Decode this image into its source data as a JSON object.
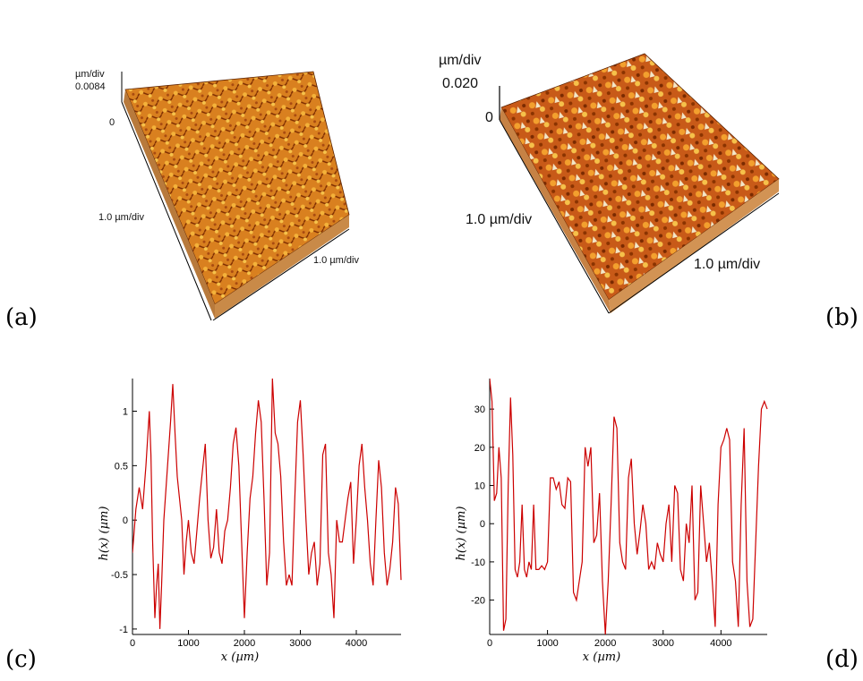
{
  "panels": {
    "a": {
      "label": "(a)",
      "z_unit": "µm/div",
      "z_value": "0.0084",
      "z_zero": "0",
      "x_scale": "1.0 µm/div",
      "y_scale": "1.0 µm/div"
    },
    "b": {
      "label": "(b)",
      "z_unit": "µm/div",
      "z_value": "0.020",
      "z_zero": "0",
      "x_scale": "1.0 µm/div",
      "y_scale": "1.0 µm/div"
    },
    "c": {
      "label": "(c)"
    },
    "d": {
      "label": "(d)"
    }
  },
  "colors": {
    "line": "#cc0000",
    "afm_dark": "#7a2a00",
    "afm_mid": "#d2691e",
    "afm_light": "#f4b23a",
    "afm_peak": "#f3e7c8"
  },
  "chart_data": [
    {
      "type": "line",
      "panel": "c",
      "xlabel": "x (µm)",
      "ylabel": "h(x) (µm)",
      "xlim": [
        0,
        4800
      ],
      "ylim": [
        -1.05,
        1.3
      ],
      "xticks": [
        0,
        1000,
        2000,
        3000,
        4000
      ],
      "yticks": [
        -1,
        -0.5,
        0,
        0.5,
        1
      ],
      "x": [
        0,
        60,
        120,
        180,
        240,
        300,
        330,
        360,
        400,
        430,
        460,
        490,
        520,
        560,
        600,
        640,
        680,
        720,
        760,
        800,
        840,
        880,
        920,
        960,
        1000,
        1050,
        1100,
        1150,
        1200,
        1250,
        1300,
        1350,
        1400,
        1450,
        1500,
        1550,
        1600,
        1650,
        1700,
        1750,
        1800,
        1850,
        1900,
        1950,
        2000,
        2050,
        2100,
        2150,
        2200,
        2250,
        2300,
        2350,
        2400,
        2450,
        2500,
        2550,
        2600,
        2650,
        2700,
        2750,
        2800,
        2850,
        2900,
        2950,
        3000,
        3050,
        3100,
        3150,
        3200,
        3250,
        3300,
        3350,
        3400,
        3450,
        3500,
        3550,
        3600,
        3650,
        3700,
        3750,
        3800,
        3850,
        3900,
        3950,
        4000,
        4050,
        4100,
        4150,
        4200,
        4250,
        4300,
        4350,
        4400,
        4450,
        4500,
        4550,
        4600,
        4650,
        4700,
        4750,
        4800
      ],
      "y": [
        -0.3,
        0.1,
        0.3,
        0.1,
        0.5,
        1.0,
        0.6,
        -0.2,
        -0.9,
        -0.6,
        -0.4,
        -1.0,
        -0.6,
        0.0,
        0.3,
        0.6,
        0.9,
        1.25,
        0.8,
        0.4,
        0.2,
        0.0,
        -0.5,
        -0.2,
        0.0,
        -0.3,
        -0.4,
        -0.1,
        0.2,
        0.45,
        0.7,
        0.0,
        -0.35,
        -0.25,
        0.1,
        -0.3,
        -0.4,
        -0.1,
        0.0,
        0.3,
        0.7,
        0.85,
        0.5,
        -0.2,
        -0.9,
        -0.3,
        0.2,
        0.4,
        0.8,
        1.1,
        0.9,
        0.2,
        -0.6,
        -0.3,
        1.3,
        0.8,
        0.7,
        0.4,
        -0.2,
        -0.6,
        -0.5,
        -0.6,
        0.2,
        0.9,
        1.1,
        0.6,
        0.0,
        -0.5,
        -0.3,
        -0.2,
        -0.6,
        -0.4,
        0.6,
        0.7,
        -0.3,
        -0.5,
        -0.9,
        0.0,
        -0.2,
        -0.2,
        0.0,
        0.2,
        0.35,
        -0.4,
        0.0,
        0.5,
        0.7,
        0.3,
        0.0,
        -0.4,
        -0.6,
        0.0,
        0.55,
        0.3,
        -0.3,
        -0.6,
        -0.45,
        -0.2,
        0.3,
        0.15,
        -0.55
      ]
    },
    {
      "type": "line",
      "panel": "d",
      "xlabel": "x (µm)",
      "ylabel": "h(x) (µm)",
      "xlim": [
        0,
        4800
      ],
      "ylim": [
        -29,
        38
      ],
      "xticks": [
        0,
        1000,
        2000,
        3000,
        4000
      ],
      "yticks": [
        -20,
        -10,
        0,
        10,
        20,
        30
      ],
      "x": [
        0,
        40,
        80,
        120,
        160,
        200,
        240,
        280,
        320,
        360,
        400,
        440,
        480,
        520,
        560,
        600,
        640,
        680,
        720,
        760,
        800,
        850,
        900,
        950,
        1000,
        1050,
        1100,
        1150,
        1200,
        1250,
        1300,
        1350,
        1400,
        1450,
        1500,
        1550,
        1600,
        1650,
        1700,
        1750,
        1800,
        1850,
        1900,
        1950,
        2000,
        2050,
        2100,
        2150,
        2200,
        2250,
        2300,
        2350,
        2400,
        2450,
        2500,
        2550,
        2600,
        2650,
        2700,
        2750,
        2800,
        2850,
        2900,
        2950,
        3000,
        3050,
        3100,
        3150,
        3200,
        3250,
        3300,
        3350,
        3400,
        3450,
        3500,
        3550,
        3600,
        3650,
        3700,
        3750,
        3800,
        3850,
        3900,
        3950,
        4000,
        4050,
        4100,
        4150,
        4200,
        4250,
        4300,
        4350,
        4400,
        4450,
        4500,
        4550,
        4600,
        4650,
        4700,
        4750,
        4800
      ],
      "y": [
        38,
        32,
        6,
        8,
        20,
        12,
        -28,
        -25,
        10,
        33,
        18,
        -12,
        -14,
        -10,
        5,
        -12,
        -14,
        -10,
        -12,
        5,
        -12,
        -12,
        -11,
        -12,
        -10,
        12,
        12,
        9,
        11,
        5,
        4,
        12,
        11,
        -18,
        -20,
        -15,
        -10,
        20,
        15,
        20,
        -5,
        -3,
        8,
        -15,
        -29,
        -15,
        5,
        28,
        25,
        -5,
        -10,
        -12,
        12,
        17,
        0,
        -8,
        -2,
        5,
        0,
        -12,
        -10,
        -12,
        -5,
        -8,
        -10,
        0,
        5,
        -10,
        10,
        8,
        -12,
        -15,
        0,
        -5,
        10,
        -20,
        -18,
        10,
        0,
        -10,
        -5,
        -15,
        -27,
        5,
        20,
        22,
        25,
        22,
        -10,
        -15,
        -27,
        5,
        25,
        -15,
        -27,
        -25,
        -5,
        15,
        30,
        32,
        30
      ]
    }
  ]
}
